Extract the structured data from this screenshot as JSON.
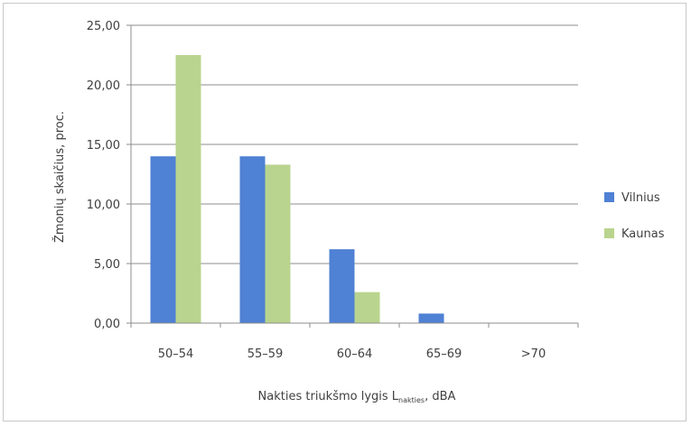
{
  "chart_data": {
    "type": "bar",
    "categories": [
      "50–54",
      "55–59",
      "60–64",
      "65–69",
      ">70"
    ],
    "series": [
      {
        "name": "Vilnius",
        "values": [
          14.0,
          14.0,
          6.2,
          0.8,
          0.0
        ],
        "color": "#4f81d4"
      },
      {
        "name": "Kaunas",
        "values": [
          22.5,
          13.3,
          2.6,
          0.0,
          0.0
        ],
        "color": "#b9d48e"
      }
    ],
    "ylabel": "Žmonių skaičius, proc.",
    "xlabel_main": "Nakties triukšmo lygis L",
    "xlabel_sub": "nakties",
    "xlabel_unit": ", dBA",
    "ylim": [
      0,
      25
    ],
    "yticks": [
      "0,00",
      "5,00",
      "10,00",
      "15,00",
      "20,00",
      "25,00"
    ],
    "grid": true,
    "legend_position": "right"
  }
}
